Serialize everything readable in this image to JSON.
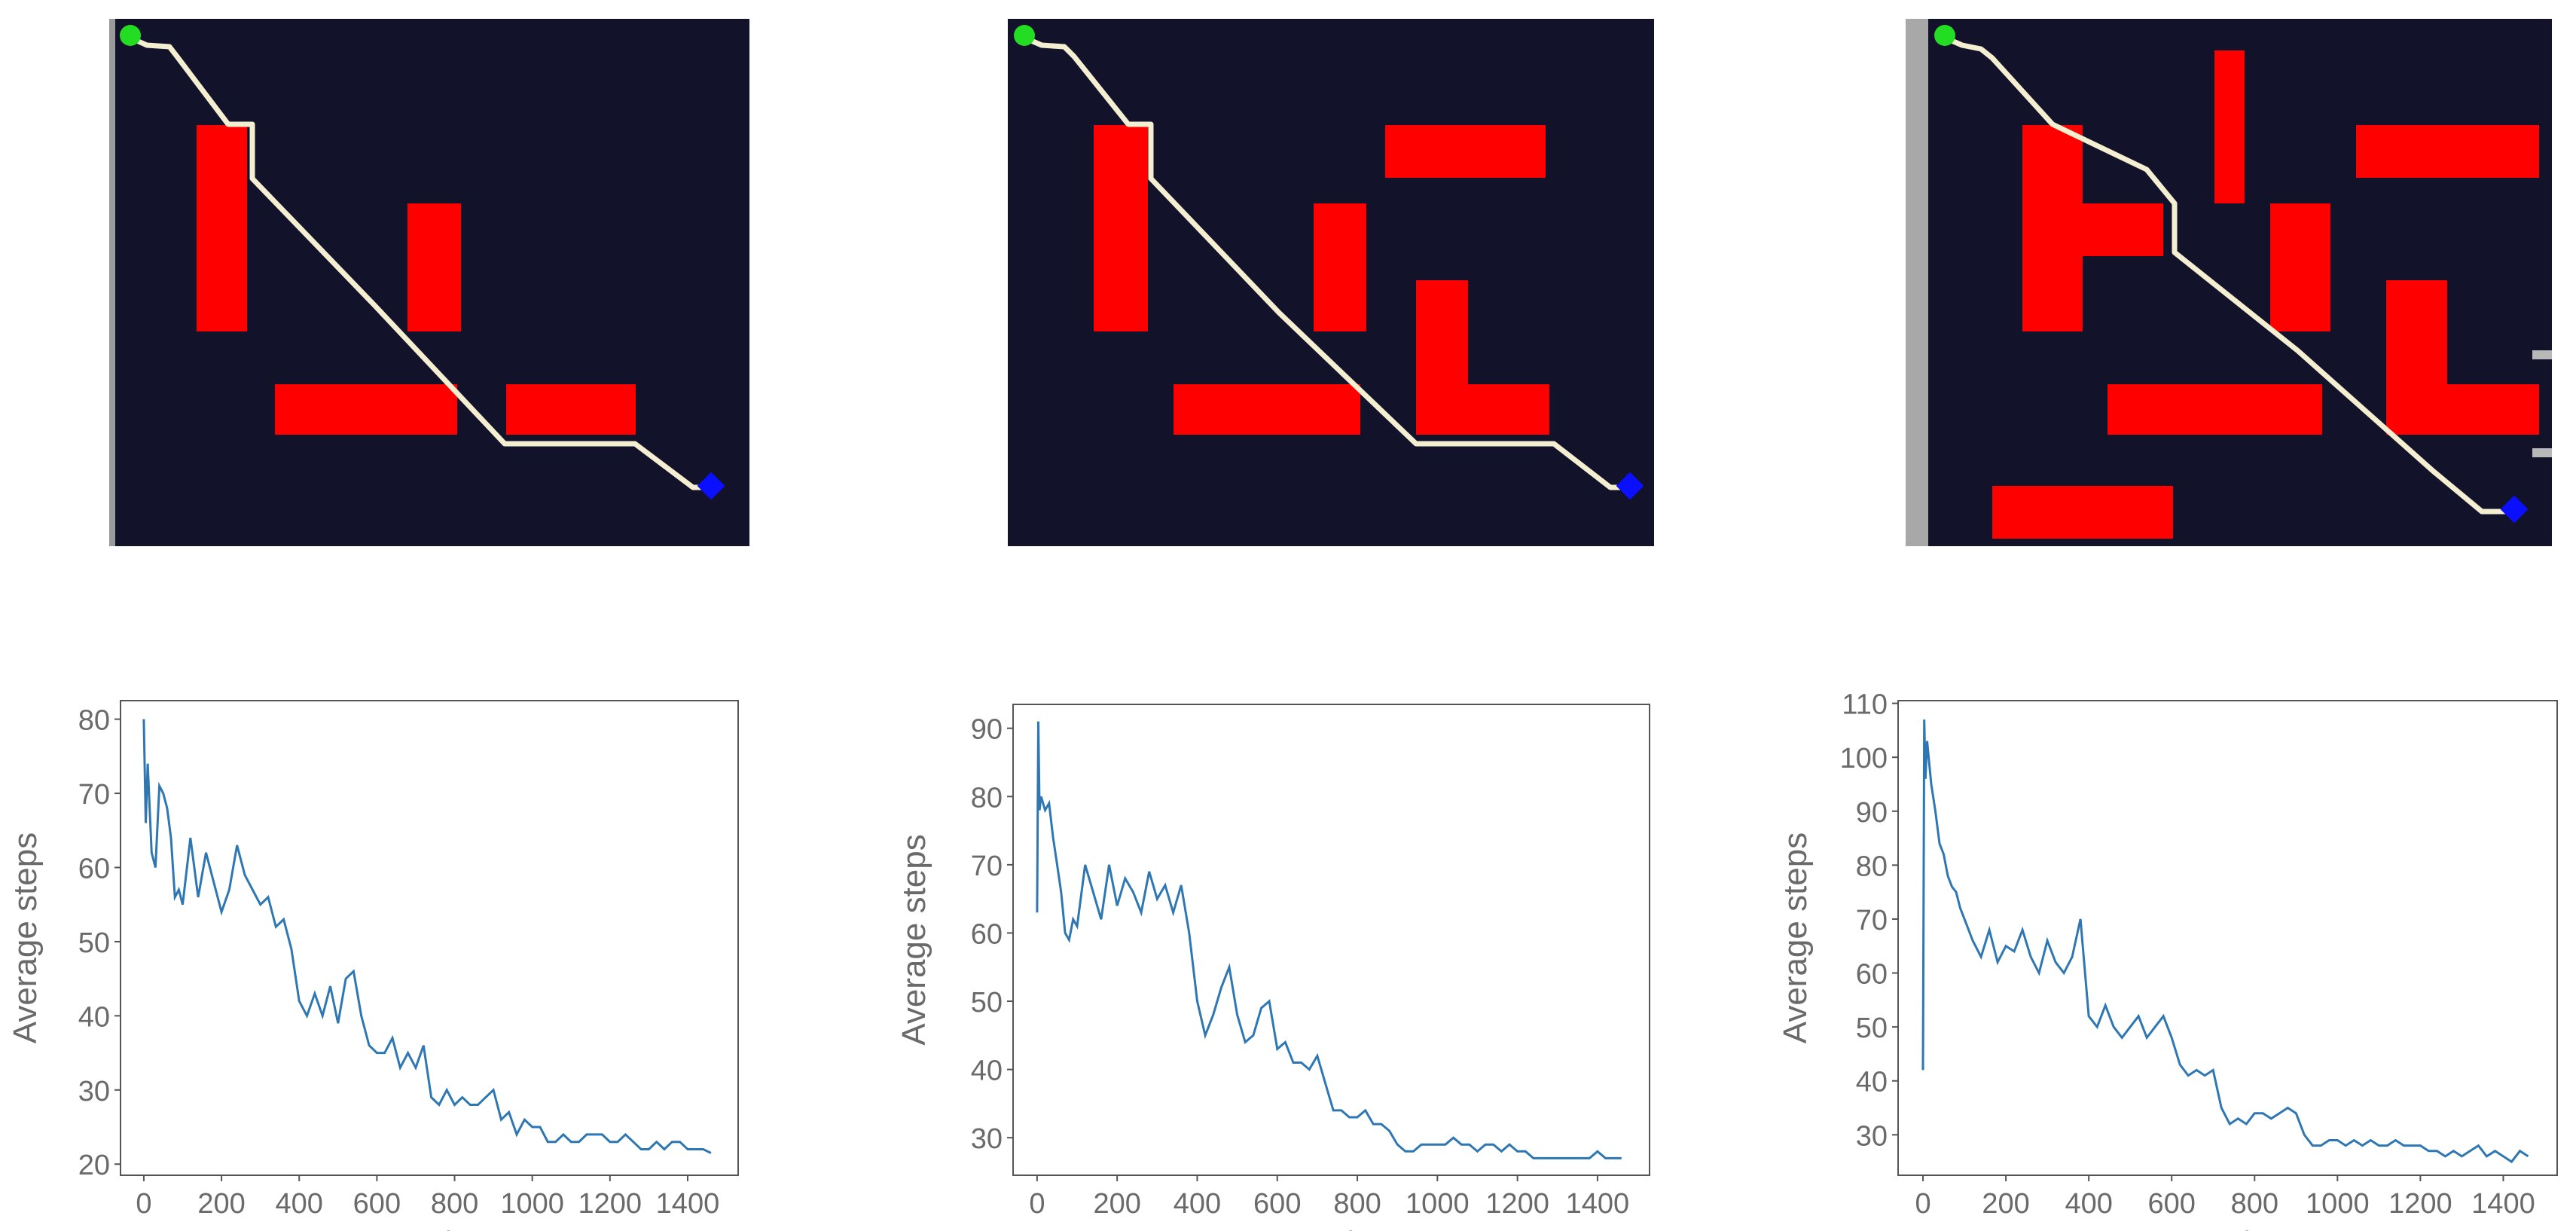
{
  "colors": {
    "maze_background": "#12122a",
    "obstacle": "#ff0000",
    "path": "#f5efd2",
    "start": "#22dd22",
    "goal": "#0a10ff",
    "series_line": "#2e77b3",
    "axis_text": "#6a6a6a",
    "axis": "#555555"
  },
  "icons": {
    "start_marker": "green-circle",
    "goal_marker": "blue-diamond"
  },
  "chart_data": [
    {
      "type": "line",
      "xlabel": "Iteration",
      "ylabel": "Average steps",
      "xlim": [
        -60,
        1530
      ],
      "ylim": [
        18.5,
        82.5
      ],
      "xticks": [
        "0",
        "200",
        "400",
        "600",
        "800",
        "1000",
        "1200",
        "1400"
      ],
      "yticks": [
        "20",
        "30",
        "40",
        "50",
        "60",
        "70",
        "80"
      ],
      "series": [
        {
          "x": [
            0,
            5,
            10,
            20,
            30,
            40,
            50,
            60,
            70,
            80,
            90,
            100,
            120,
            140,
            160,
            180,
            200,
            220,
            240,
            260,
            280,
            300,
            320,
            340,
            360,
            380,
            400,
            420,
            440,
            460,
            480,
            500,
            520,
            540,
            560,
            580,
            600,
            620,
            640,
            660,
            680,
            700,
            720,
            740,
            760,
            780,
            800,
            820,
            840,
            860,
            880,
            900,
            920,
            940,
            960,
            980,
            1000,
            1020,
            1040,
            1060,
            1080,
            1100,
            1120,
            1140,
            1160,
            1180,
            1200,
            1220,
            1240,
            1260,
            1280,
            1300,
            1320,
            1340,
            1360,
            1380,
            1400,
            1420,
            1440,
            1460
          ],
          "y": [
            80,
            66,
            74,
            62,
            60,
            71,
            70,
            68,
            64,
            56,
            57,
            55,
            64,
            56,
            62,
            58,
            54,
            57,
            63,
            59,
            57,
            55,
            56,
            52,
            53,
            49,
            42,
            40,
            43,
            40,
            44,
            39,
            45,
            46,
            40,
            36,
            35,
            35,
            37,
            33,
            35,
            33,
            36,
            29,
            28,
            30,
            28,
            29,
            28,
            28,
            29,
            30,
            26,
            27,
            24,
            26,
            25,
            25,
            23,
            23,
            24,
            23,
            23,
            24,
            24,
            24,
            23,
            23,
            24,
            23,
            22,
            22,
            23,
            22,
            23,
            23,
            22,
            22,
            22,
            21.5
          ]
        }
      ]
    },
    {
      "type": "line",
      "xlabel": "Iteration",
      "ylabel": "Average steps",
      "xlim": [
        -60,
        1530
      ],
      "ylim": [
        24.5,
        93.5
      ],
      "xticks": [
        "0",
        "200",
        "400",
        "600",
        "800",
        "1000",
        "1200",
        "1400"
      ],
      "yticks": [
        "30",
        "40",
        "50",
        "60",
        "70",
        "80",
        "90"
      ],
      "series": [
        {
          "x": [
            0,
            3,
            6,
            10,
            20,
            30,
            40,
            50,
            60,
            70,
            80,
            90,
            100,
            120,
            140,
            160,
            180,
            200,
            220,
            240,
            260,
            280,
            300,
            320,
            340,
            360,
            380,
            400,
            420,
            440,
            460,
            480,
            500,
            520,
            540,
            560,
            580,
            600,
            620,
            640,
            660,
            680,
            700,
            720,
            740,
            760,
            780,
            800,
            820,
            840,
            860,
            880,
            900,
            920,
            940,
            960,
            980,
            1000,
            1020,
            1040,
            1060,
            1080,
            1100,
            1120,
            1140,
            1160,
            1180,
            1200,
            1220,
            1240,
            1260,
            1280,
            1300,
            1320,
            1340,
            1360,
            1380,
            1400,
            1420,
            1440,
            1460
          ],
          "y": [
            63,
            91,
            78,
            80,
            78,
            79,
            74,
            70,
            66,
            60,
            59,
            62,
            61,
            70,
            66,
            62,
            70,
            64,
            68,
            66,
            63,
            69,
            65,
            67,
            63,
            67,
            60,
            50,
            45,
            48,
            52,
            55,
            48,
            44,
            45,
            49,
            50,
            43,
            44,
            41,
            41,
            40,
            42,
            38,
            34,
            34,
            33,
            33,
            34,
            32,
            32,
            31,
            29,
            28,
            28,
            29,
            29,
            29,
            29,
            30,
            29,
            29,
            28,
            29,
            29,
            28,
            29,
            28,
            28,
            27,
            27,
            27,
            27,
            27,
            27,
            27,
            27,
            28,
            27,
            27,
            27
          ]
        }
      ]
    },
    {
      "type": "line",
      "xlabel": "Iteration",
      "ylabel": "Average steps",
      "xlim": [
        -60,
        1530
      ],
      "ylim": [
        22.5,
        110.5
      ],
      "xticks": [
        "0",
        "200",
        "400",
        "600",
        "800",
        "1000",
        "1200",
        "1400"
      ],
      "yticks": [
        "30",
        "40",
        "50",
        "60",
        "70",
        "80",
        "90",
        "100",
        "110"
      ],
      "series": [
        {
          "x": [
            0,
            3,
            6,
            10,
            20,
            30,
            40,
            50,
            60,
            70,
            80,
            90,
            100,
            120,
            140,
            160,
            180,
            200,
            220,
            240,
            260,
            280,
            300,
            320,
            340,
            360,
            380,
            400,
            420,
            440,
            460,
            480,
            500,
            520,
            540,
            560,
            580,
            600,
            620,
            640,
            660,
            680,
            700,
            720,
            740,
            760,
            780,
            800,
            820,
            840,
            860,
            880,
            900,
            920,
            940,
            960,
            980,
            1000,
            1020,
            1040,
            1060,
            1080,
            1100,
            1120,
            1140,
            1160,
            1180,
            1200,
            1220,
            1240,
            1260,
            1280,
            1300,
            1320,
            1340,
            1360,
            1380,
            1400,
            1420,
            1440,
            1460
          ],
          "y": [
            42,
            107,
            96,
            103,
            95,
            90,
            84,
            82,
            78,
            76,
            75,
            72,
            70,
            66,
            63,
            68,
            62,
            65,
            64,
            68,
            63,
            60,
            66,
            62,
            60,
            63,
            70,
            52,
            50,
            54,
            50,
            48,
            50,
            52,
            48,
            50,
            52,
            48,
            43,
            41,
            42,
            41,
            42,
            35,
            32,
            33,
            32,
            34,
            34,
            33,
            34,
            35,
            34,
            30,
            28,
            28,
            29,
            29,
            28,
            29,
            28,
            29,
            28,
            28,
            29,
            28,
            28,
            28,
            27,
            27,
            26,
            27,
            26,
            27,
            28,
            26,
            27,
            26,
            25,
            27,
            26
          ]
        }
      ]
    }
  ]
}
